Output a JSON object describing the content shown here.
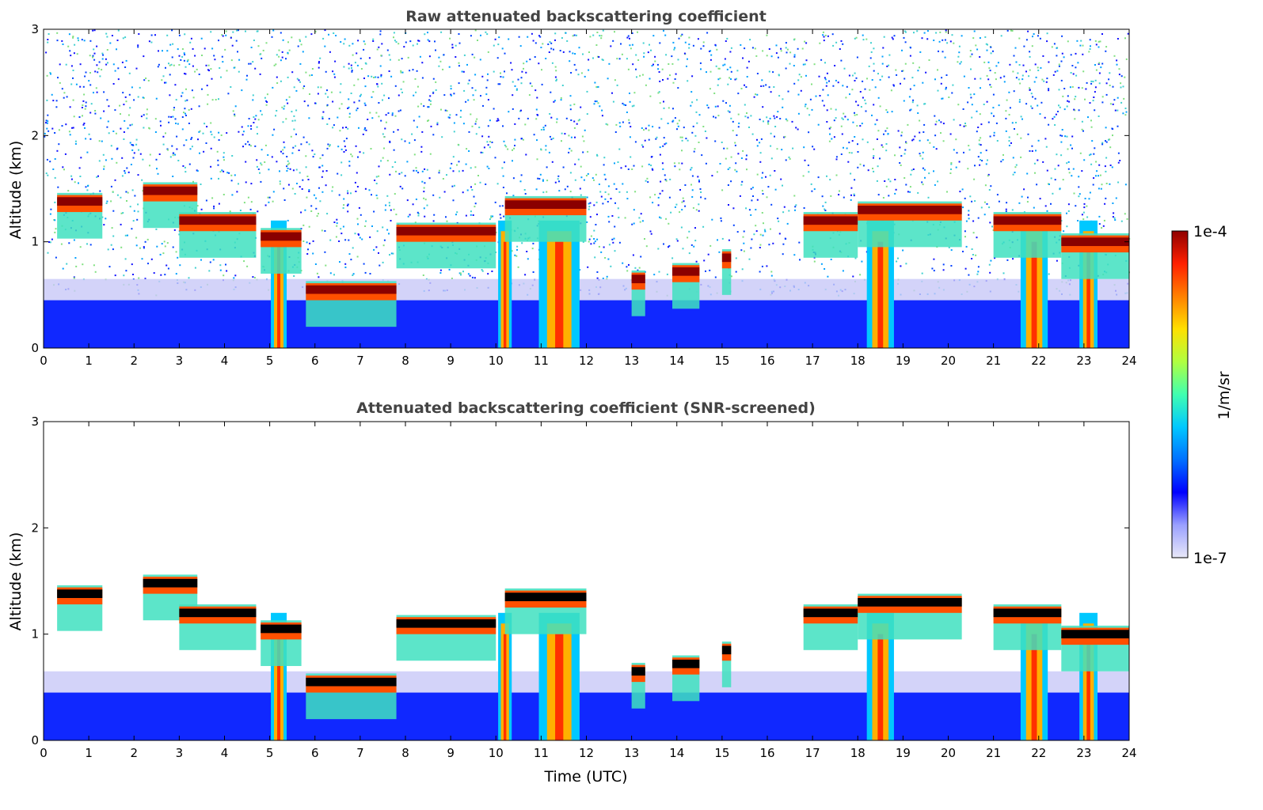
{
  "chart_data": [
    {
      "type": "heatmap",
      "title": "Raw attenuated backscattering coefficient",
      "xlabel": "",
      "ylabel": "Altitude (km)",
      "xlim": [
        0,
        24
      ],
      "ylim": [
        0,
        3
      ],
      "xticks": [
        "0",
        "1",
        "2",
        "3",
        "4",
        "5",
        "6",
        "7",
        "8",
        "9",
        "10",
        "11",
        "12",
        "13",
        "14",
        "15",
        "16",
        "17",
        "18",
        "19",
        "20",
        "21",
        "22",
        "23",
        "24"
      ],
      "yticks": [
        "0",
        "1",
        "2",
        "3"
      ],
      "cloud_layers": [
        {
          "t0": 0.3,
          "t1": 1.3,
          "alt": 1.38
        },
        {
          "t0": 2.2,
          "t1": 3.4,
          "alt": 1.48
        },
        {
          "t0": 3.0,
          "t1": 4.7,
          "alt": 1.2
        },
        {
          "t0": 4.8,
          "t1": 5.7,
          "alt": 1.05
        },
        {
          "t0": 5.8,
          "t1": 7.8,
          "alt": 0.55
        },
        {
          "t0": 7.8,
          "t1": 10.0,
          "alt": 1.1
        },
        {
          "t0": 10.2,
          "t1": 12.0,
          "alt": 1.35
        },
        {
          "t0": 13.0,
          "t1": 13.3,
          "alt": 0.65
        },
        {
          "t0": 13.9,
          "t1": 14.5,
          "alt": 0.72
        },
        {
          "t0": 15.0,
          "t1": 15.2,
          "alt": 0.85
        },
        {
          "t0": 16.8,
          "t1": 18.0,
          "alt": 1.2
        },
        {
          "t0": 18.0,
          "t1": 20.3,
          "alt": 1.3
        },
        {
          "t0": 21.0,
          "t1": 22.5,
          "alt": 1.2
        },
        {
          "t0": 22.5,
          "t1": 24.0,
          "alt": 1.0
        }
      ],
      "precip_columns": [
        {
          "t": 5.2,
          "width": 0.35
        },
        {
          "t": 10.2,
          "width": 0.3
        },
        {
          "t": 11.4,
          "width": 0.9
        },
        {
          "t": 18.5,
          "width": 0.6
        },
        {
          "t": 21.9,
          "width": 0.6
        },
        {
          "t": 23.1,
          "width": 0.4
        }
      ]
    },
    {
      "type": "heatmap",
      "title": "Attenuated backscattering coefficient (SNR-screened)",
      "xlabel": "Time (UTC)",
      "ylabel": "Altitude (km)",
      "xlim": [
        0,
        24
      ],
      "ylim": [
        0,
        3
      ],
      "xticks": [
        "0",
        "1",
        "2",
        "3",
        "4",
        "5",
        "6",
        "7",
        "8",
        "9",
        "10",
        "11",
        "12",
        "13",
        "14",
        "15",
        "16",
        "17",
        "18",
        "19",
        "20",
        "21",
        "22",
        "23",
        "24"
      ],
      "yticks": [
        "0",
        "1",
        "2",
        "3"
      ]
    }
  ],
  "colorbar": {
    "label": "1/m/sr",
    "max_label": "1e-4",
    "min_label": "1e-7",
    "colors": [
      "#e8e8f8",
      "#9aa0ff",
      "#0000ff",
      "#0070ff",
      "#00c8ff",
      "#40ffb0",
      "#b0ff40",
      "#ffe000",
      "#ff8000",
      "#ff2000",
      "#900000"
    ]
  }
}
